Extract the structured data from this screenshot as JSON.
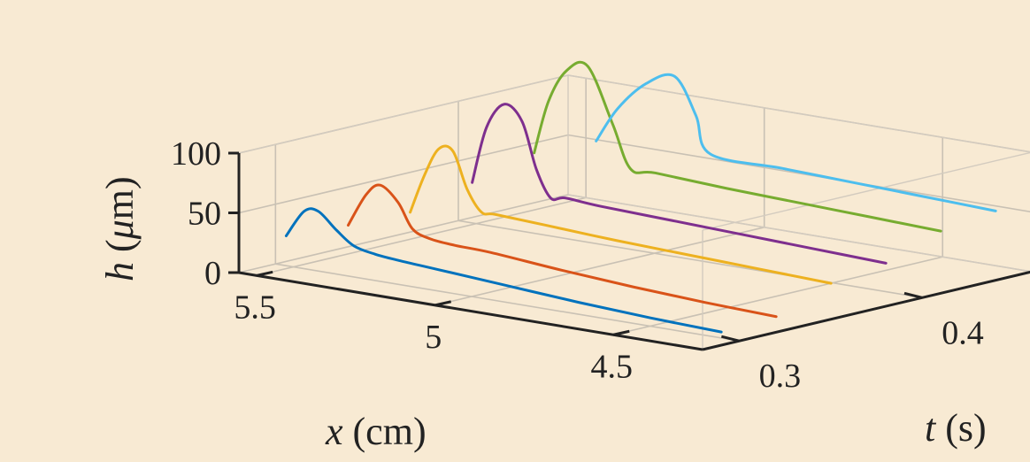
{
  "chart_data": {
    "type": "line",
    "projection": "3d-waterfall",
    "axes": {
      "x": {
        "label_var": "x",
        "label_unit": " (cm)",
        "ticks": [
          "5.5",
          "5",
          "4.5"
        ],
        "tick_values": [
          5.5,
          5,
          4.5
        ],
        "range": [
          4.25,
          5.55
        ],
        "direction": "decreasing"
      },
      "t": {
        "label_var": "t",
        "label_unit": " (s)",
        "ticks": [
          "0.3",
          "0.4"
        ],
        "tick_values": [
          0.3,
          0.4
        ],
        "range": [
          0.28,
          0.46
        ]
      },
      "h": {
        "label_var": "h",
        "label_unit_pre": " (",
        "label_unit_mu": "μ",
        "label_unit_post": "m)",
        "ticks": [
          "0",
          "50",
          "100"
        ],
        "tick_values": [
          0,
          50,
          100
        ],
        "range": [
          0,
          100
        ]
      }
    },
    "grid": true,
    "series": [
      {
        "t": 0.3,
        "color": "#0072bd",
        "x": [
          5.52,
          5.47,
          5.43,
          5.38,
          5.33,
          5.27,
          5.2,
          5.1,
          4.9,
          4.7,
          4.5,
          4.3
        ],
        "h": [
          25,
          48,
          50,
          37,
          26,
          22,
          20,
          18,
          14,
          10,
          7,
          5
        ]
      },
      {
        "t": 0.33,
        "color": "#d95319",
        "x": [
          5.5,
          5.45,
          5.41,
          5.36,
          5.32,
          5.27,
          5.2,
          5.1,
          4.9,
          4.7,
          4.5,
          4.3
        ],
        "h": [
          24,
          52,
          62,
          50,
          30,
          24,
          22,
          21,
          16,
          12,
          9,
          7
        ]
      },
      {
        "t": 0.36,
        "color": "#edb120",
        "x": [
          5.48,
          5.44,
          5.4,
          5.36,
          5.32,
          5.28,
          5.24,
          5.1,
          4.9,
          4.7,
          4.5,
          4.3
        ],
        "h": [
          25,
          58,
          82,
          82,
          52,
          35,
          35,
          33,
          30,
          28,
          26,
          24
        ]
      },
      {
        "t": 0.39,
        "color": "#7e2f8e",
        "x": [
          5.46,
          5.42,
          5.37,
          5.32,
          5.28,
          5.24,
          5.2,
          5.1,
          4.9,
          4.7,
          4.5,
          4.3
        ],
        "h": [
          40,
          88,
          110,
          98,
          60,
          38,
          40,
          38,
          36,
          34,
          32,
          30
        ]
      },
      {
        "t": 0.42,
        "color": "#77ac30",
        "x": [
          5.44,
          5.4,
          5.35,
          5.29,
          5.22,
          5.17,
          5.1,
          4.9,
          4.7,
          4.5,
          4.3
        ],
        "h": [
          55,
          100,
          128,
          135,
          90,
          55,
          55,
          52,
          50,
          48,
          46
        ]
      },
      {
        "t": 0.45,
        "color": "#4dbeee",
        "x": [
          5.42,
          5.36,
          5.28,
          5.2,
          5.14,
          5.1,
          4.9,
          4.7,
          4.5,
          4.3
        ],
        "h": [
          55,
          85,
          110,
          120,
          90,
          60,
          58,
          56,
          54,
          52
        ]
      }
    ]
  }
}
